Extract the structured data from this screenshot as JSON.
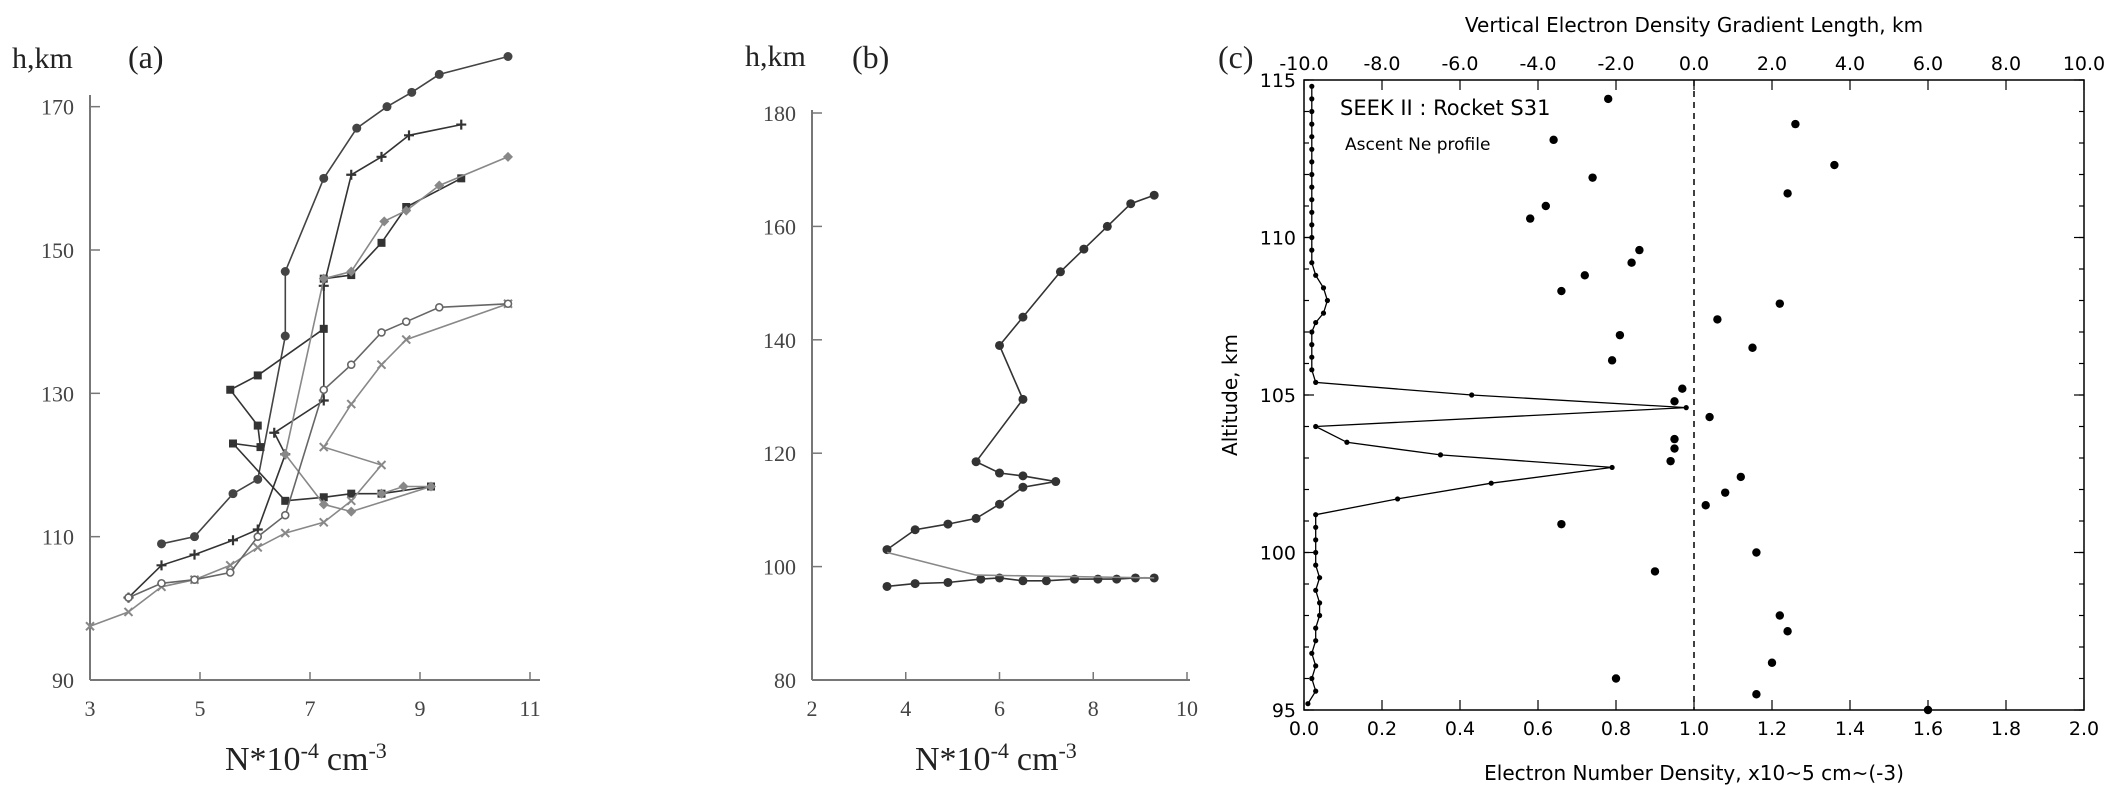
{
  "chart_data": [
    {
      "type": "line",
      "panel_label": "(a)",
      "ylabel": "h,km",
      "xlabel": "N*10",
      "xlabel_exp": "-4",
      "xlabel_unit": "cm",
      "xlabel_unit_exp": "-3",
      "xlim": [
        3,
        11
      ],
      "ylim": [
        90,
        180
      ],
      "xticks": [
        "3",
        "5",
        "7",
        "9",
        "11"
      ],
      "yticks": [
        "90",
        "110",
        "130",
        "150",
        "170"
      ],
      "series": [
        {
          "marker": "circle",
          "color": "#444444",
          "points": [
            [
              4.3,
              109
            ],
            [
              4.9,
              110
            ],
            [
              5.6,
              116
            ],
            [
              6.05,
              118
            ],
            [
              6.55,
              138
            ],
            [
              6.55,
              147
            ],
            [
              7.25,
              160
            ],
            [
              7.85,
              167
            ],
            [
              8.4,
              170
            ],
            [
              8.85,
              172
            ],
            [
              9.35,
              174.5
            ],
            [
              10.6,
              177
            ]
          ]
        },
        {
          "marker": "plus",
          "color": "#333333",
          "points": [
            [
              3.7,
              101.5
            ],
            [
              4.3,
              106
            ],
            [
              4.9,
              107.5
            ],
            [
              5.6,
              109.5
            ],
            [
              6.05,
              111
            ],
            [
              6.55,
              121.5
            ],
            [
              6.35,
              124.5
            ],
            [
              7.25,
              129
            ],
            [
              7.25,
              145
            ],
            [
              7.75,
              160.5
            ],
            [
              8.3,
              163
            ],
            [
              8.8,
              166
            ],
            [
              9.75,
              167.5
            ]
          ]
        },
        {
          "marker": "square",
          "color": "#333333",
          "points": [
            [
              9.2,
              117
            ],
            [
              8.3,
              116
            ],
            [
              7.75,
              116
            ],
            [
              7.25,
              115.5
            ],
            [
              6.55,
              115
            ],
            [
              5.6,
              123
            ],
            [
              6.1,
              122.5
            ],
            [
              6.05,
              125.5
            ],
            [
              5.55,
              130.5
            ],
            [
              6.05,
              132.5
            ],
            [
              7.25,
              139
            ],
            [
              7.25,
              146
            ],
            [
              7.75,
              146.5
            ],
            [
              8.3,
              151
            ],
            [
              8.75,
              156
            ],
            [
              9.75,
              160
            ]
          ]
        },
        {
          "marker": "diamond",
          "color": "#888888",
          "points": [
            [
              8.3,
              116
            ],
            [
              8.7,
              117
            ],
            [
              9.2,
              117
            ],
            [
              7.75,
              113.5
            ],
            [
              7.25,
              114.5
            ],
            [
              6.55,
              121.5
            ],
            [
              7.25,
              146
            ],
            [
              7.75,
              147
            ],
            [
              8.35,
              154
            ],
            [
              8.75,
              155.5
            ],
            [
              9.35,
              159
            ],
            [
              10.6,
              163
            ]
          ]
        },
        {
          "marker": "x",
          "color": "#888888",
          "points": [
            [
              3.0,
              97.5
            ],
            [
              3.7,
              99.5
            ],
            [
              4.3,
              103
            ],
            [
              4.9,
              104
            ],
            [
              5.55,
              106
            ],
            [
              6.05,
              108.5
            ],
            [
              6.55,
              110.5
            ],
            [
              7.25,
              112
            ],
            [
              7.75,
              115
            ],
            [
              8.3,
              120
            ],
            [
              7.25,
              122.5
            ],
            [
              7.75,
              128.5
            ],
            [
              8.3,
              134
            ],
            [
              8.75,
              137.5
            ],
            [
              10.6,
              142.5
            ]
          ]
        },
        {
          "marker": "hex",
          "color": "#666666",
          "points": [
            [
              3.7,
              101.5
            ],
            [
              4.3,
              103.5
            ],
            [
              4.9,
              104
            ],
            [
              5.55,
              105
            ],
            [
              6.05,
              110
            ],
            [
              6.55,
              113
            ],
            [
              7.25,
              130.5
            ],
            [
              7.75,
              134
            ],
            [
              8.3,
              138.5
            ],
            [
              8.75,
              140
            ],
            [
              9.35,
              142
            ],
            [
              10.6,
              142.5
            ]
          ]
        }
      ]
    },
    {
      "type": "line",
      "panel_label": "(b)",
      "ylabel": "h,km",
      "xlabel": "N*10",
      "xlabel_exp": "-4",
      "xlabel_unit": "cm",
      "xlabel_unit_exp": "-3",
      "xlim": [
        2,
        10
      ],
      "ylim": [
        80,
        180
      ],
      "xticks": [
        "2",
        "4",
        "6",
        "8",
        "10"
      ],
      "yticks": [
        "80",
        "100",
        "120",
        "140",
        "160",
        "180"
      ],
      "series": [
        {
          "marker": "circle",
          "color": "#333333",
          "points": [
            [
              3.6,
              96.5
            ],
            [
              4.2,
              97
            ],
            [
              4.9,
              97.2
            ],
            [
              5.6,
              97.8
            ],
            [
              6.0,
              98
            ],
            [
              6.5,
              97.5
            ],
            [
              7.0,
              97.5
            ],
            [
              7.6,
              97.8
            ],
            [
              8.1,
              97.8
            ],
            [
              8.5,
              97.8
            ],
            [
              8.9,
              98
            ],
            [
              9.3,
              98
            ]
          ]
        },
        {
          "marker": "circle",
          "color": "#333333",
          "points": [
            [
              3.6,
              103
            ],
            [
              4.2,
              106.5
            ],
            [
              4.9,
              107.5
            ],
            [
              5.5,
              108.5
            ],
            [
              6.0,
              111
            ],
            [
              6.5,
              114
            ],
            [
              7.2,
              115
            ],
            [
              6.5,
              116
            ],
            [
              6.0,
              116.5
            ],
            [
              5.5,
              118.5
            ],
            [
              6.5,
              129.5
            ],
            [
              6.0,
              139
            ],
            [
              6.5,
              144
            ],
            [
              7.3,
              152
            ],
            [
              7.8,
              156
            ],
            [
              8.3,
              160
            ],
            [
              8.8,
              164
            ],
            [
              9.3,
              165.5
            ]
          ]
        },
        {
          "marker": "none",
          "color": "#888888",
          "points": [
            [
              3.6,
              102.5
            ],
            [
              5.5,
              98.5
            ],
            [
              9.3,
              98
            ]
          ]
        }
      ]
    },
    {
      "type": "scatter",
      "panel_label": "(c)",
      "title_top": "Vertical Electron Density Gradient Length, km",
      "xlabel": "Electron Number Density, x10~5 cm~(-3)",
      "ylabel": "Altitude, km",
      "annotation_1": "SEEK II : Rocket S31",
      "annotation_2": "Ascent Ne profile",
      "xlim": [
        0.0,
        2.0
      ],
      "ylim": [
        95,
        115
      ],
      "xlim_top": [
        -10.0,
        10.0
      ],
      "xticks": [
        "0.0",
        "0.2",
        "0.4",
        "0.6",
        "0.8",
        "1.0",
        "1.2",
        "1.4",
        "1.6",
        "1.8",
        "2.0"
      ],
      "xticks_top": [
        "-10.0",
        "-8.0",
        "-6.0",
        "-4.0",
        "-2.0",
        "0.0",
        "2.0",
        "4.0",
        "6.0",
        "8.0",
        "10.0"
      ],
      "yticks": [
        "95",
        "100",
        "105",
        "110",
        "115"
      ],
      "vline_top_x": 0.0,
      "profile_series": {
        "name": "",
        "points": [
          [
            0.01,
            95.2
          ],
          [
            0.03,
            95.6
          ],
          [
            0.02,
            96.0
          ],
          [
            0.03,
            96.4
          ],
          [
            0.02,
            96.8
          ],
          [
            0.03,
            97.2
          ],
          [
            0.03,
            97.6
          ],
          [
            0.04,
            98.0
          ],
          [
            0.04,
            98.4
          ],
          [
            0.03,
            98.8
          ],
          [
            0.04,
            99.2
          ],
          [
            0.03,
            99.6
          ],
          [
            0.03,
            100.0
          ],
          [
            0.03,
            100.4
          ],
          [
            0.03,
            100.8
          ],
          [
            0.03,
            101.2
          ],
          [
            0.24,
            101.7
          ],
          [
            0.48,
            102.2
          ],
          [
            0.79,
            102.7
          ],
          [
            0.35,
            103.1
          ],
          [
            0.11,
            103.5
          ],
          [
            0.03,
            104.0
          ],
          [
            0.98,
            104.6
          ],
          [
            0.43,
            105.0
          ],
          [
            0.03,
            105.4
          ],
          [
            0.02,
            105.8
          ],
          [
            0.02,
            106.2
          ],
          [
            0.02,
            106.6
          ],
          [
            0.02,
            107.0
          ],
          [
            0.03,
            107.3
          ],
          [
            0.05,
            107.6
          ],
          [
            0.06,
            108.0
          ],
          [
            0.05,
            108.4
          ],
          [
            0.03,
            108.8
          ],
          [
            0.02,
            109.2
          ],
          [
            0.02,
            109.6
          ],
          [
            0.02,
            110.0
          ],
          [
            0.02,
            110.4
          ],
          [
            0.02,
            110.8
          ],
          [
            0.02,
            111.2
          ],
          [
            0.02,
            111.6
          ],
          [
            0.02,
            112.0
          ],
          [
            0.02,
            112.4
          ],
          [
            0.02,
            112.8
          ],
          [
            0.02,
            113.2
          ],
          [
            0.02,
            113.6
          ],
          [
            0.02,
            114.0
          ],
          [
            0.02,
            114.4
          ],
          [
            0.02,
            114.8
          ]
        ]
      },
      "gradient_points_top_km": [
        [
          -2.2,
          114.4
        ],
        [
          -3.6,
          113.1
        ],
        [
          2.6,
          113.6
        ],
        [
          3.6,
          112.3
        ],
        [
          -2.6,
          111.9
        ],
        [
          2.4,
          111.4
        ],
        [
          -3.8,
          111.0
        ],
        [
          -4.2,
          110.6
        ],
        [
          -1.4,
          109.6
        ],
        [
          -1.6,
          109.2
        ],
        [
          -2.8,
          108.8
        ],
        [
          -3.4,
          108.3
        ],
        [
          2.2,
          107.9
        ],
        [
          0.6,
          107.4
        ],
        [
          -1.9,
          106.9
        ],
        [
          1.5,
          106.5
        ],
        [
          -2.1,
          106.1
        ],
        [
          -0.3,
          105.2
        ],
        [
          -0.5,
          104.8
        ],
        [
          0.4,
          104.3
        ],
        [
          -0.5,
          103.6
        ],
        [
          -0.5,
          103.3
        ],
        [
          -0.6,
          102.9
        ],
        [
          1.2,
          102.4
        ],
        [
          0.8,
          101.9
        ],
        [
          0.3,
          101.5
        ],
        [
          -3.4,
          100.9
        ],
        [
          1.6,
          100.0
        ],
        [
          -1.0,
          99.4
        ],
        [
          2.2,
          98.0
        ],
        [
          2.4,
          97.5
        ],
        [
          2.0,
          96.5
        ],
        [
          -2.0,
          96.0
        ],
        [
          1.6,
          95.5
        ],
        [
          6.0,
          95.0
        ]
      ]
    }
  ]
}
